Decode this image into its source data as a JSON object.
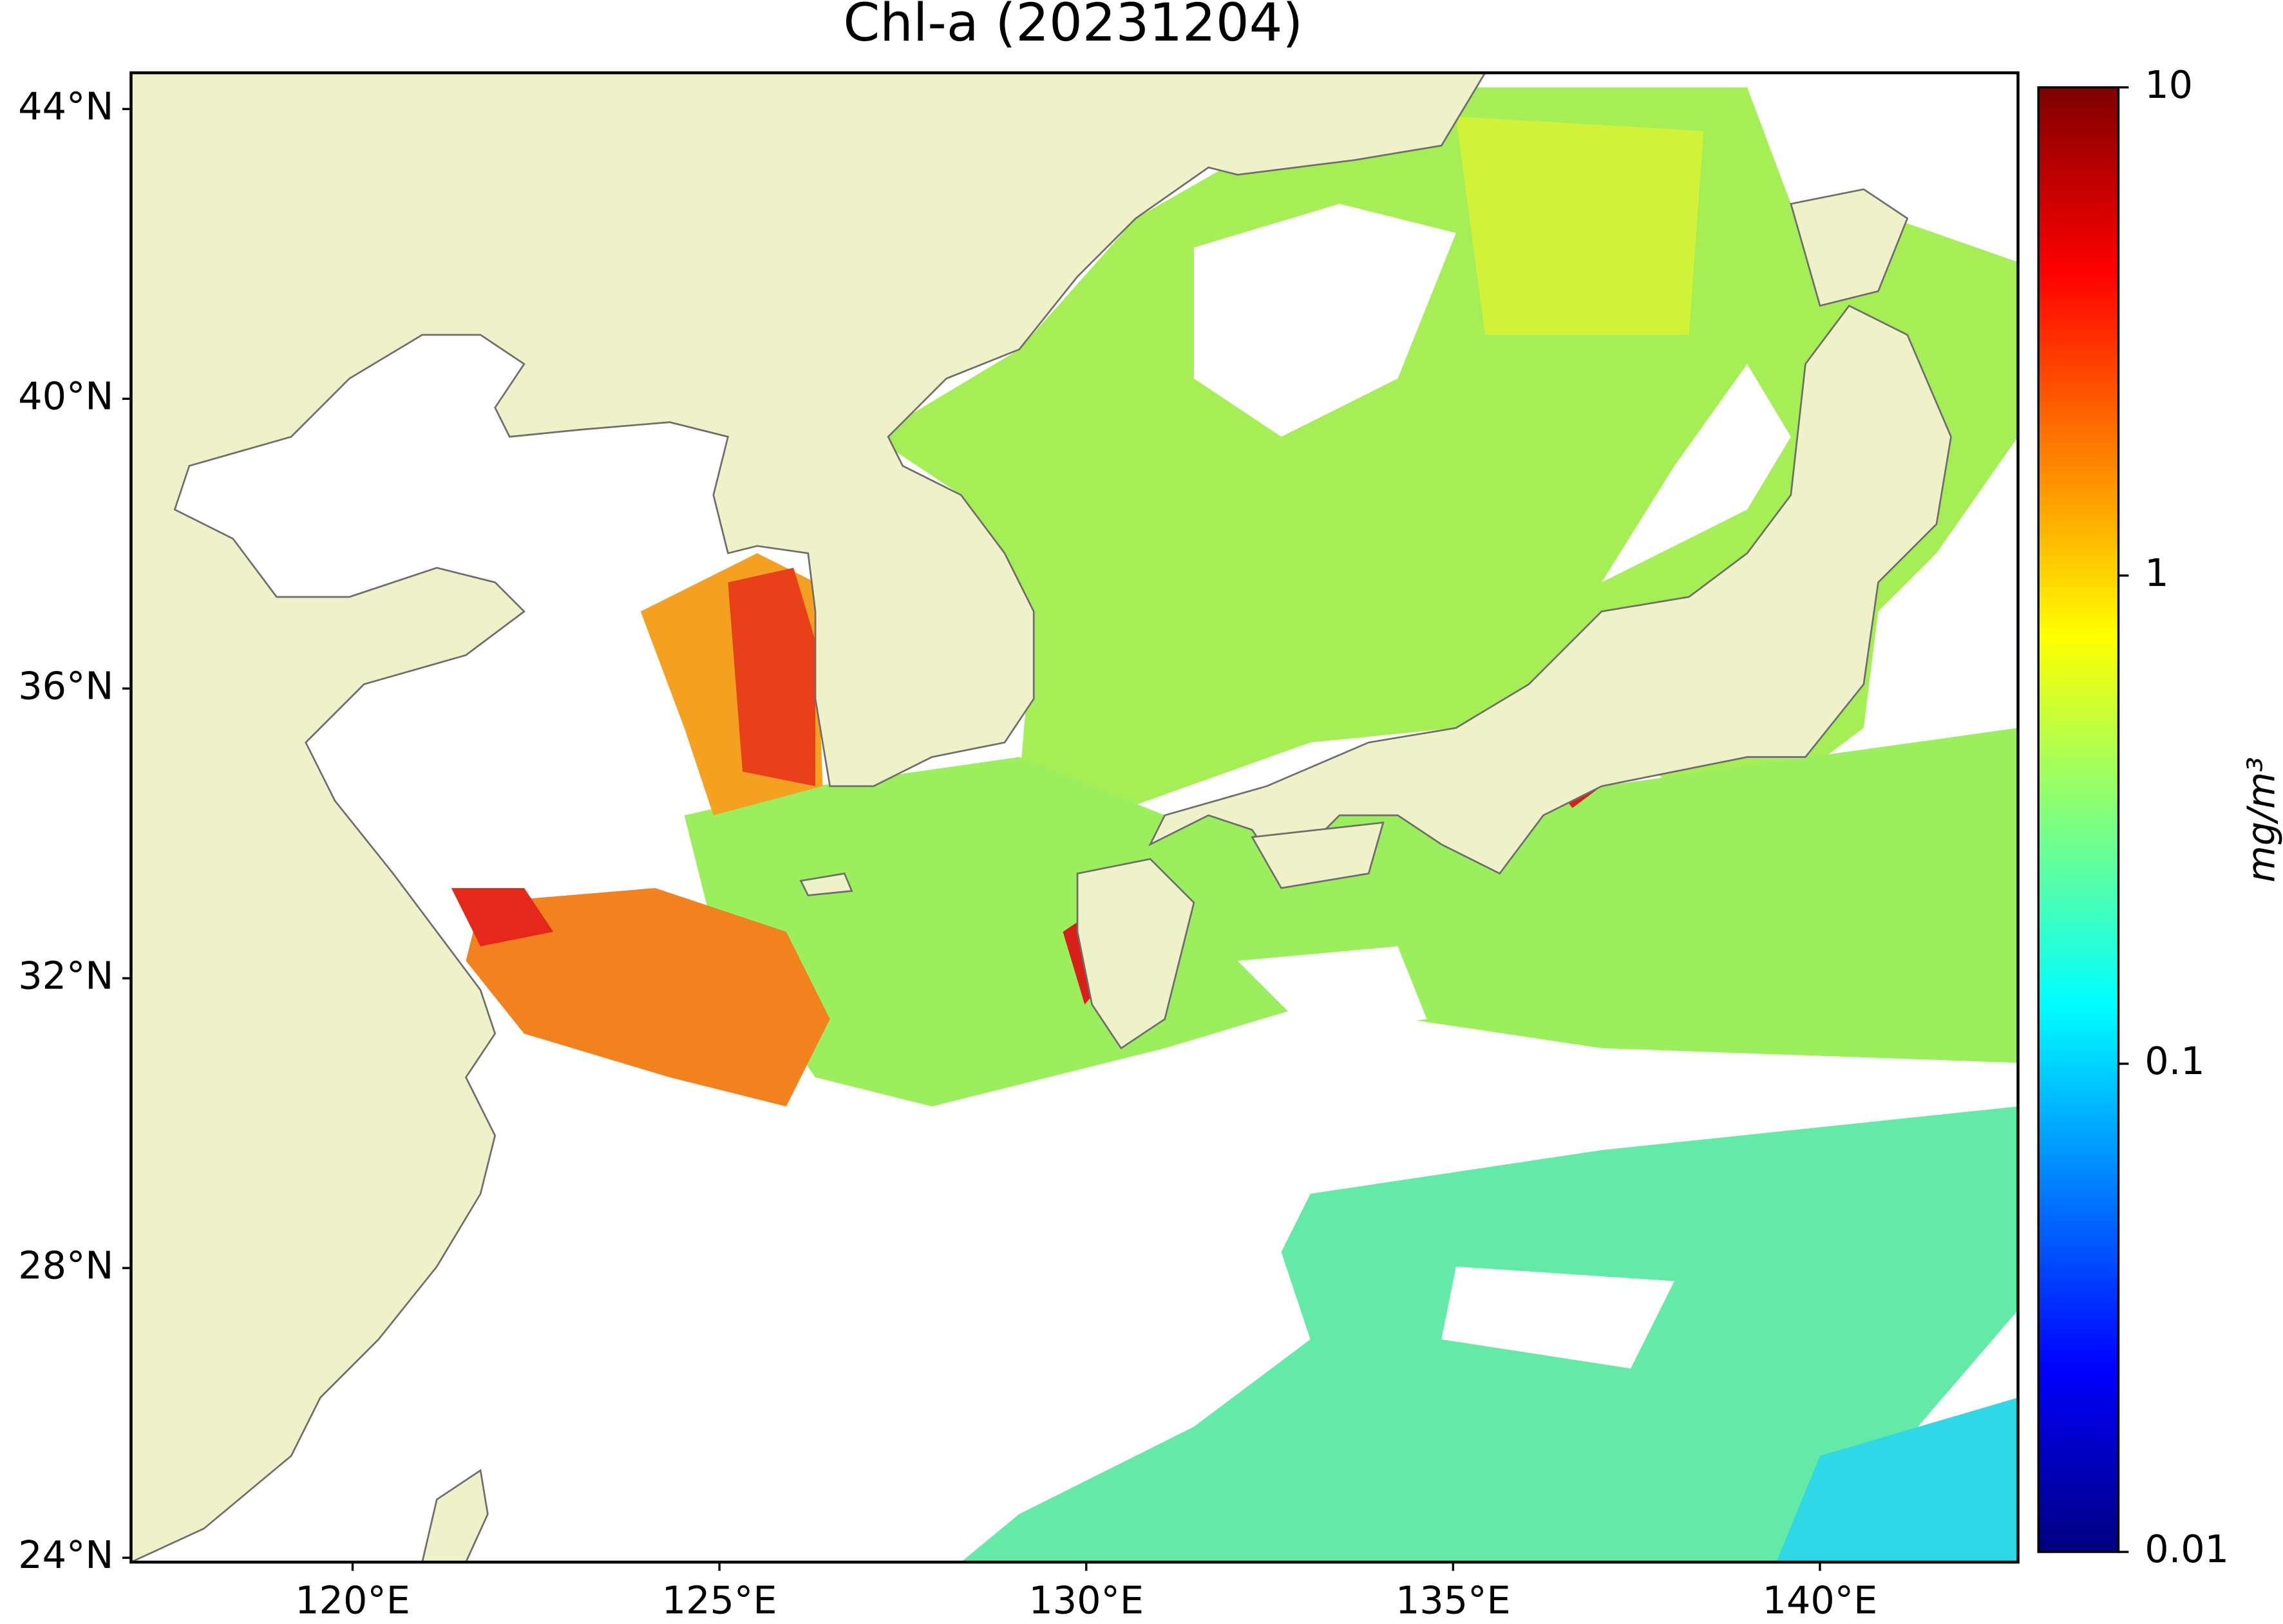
{
  "chart_data": {
    "type": "map",
    "title": "Chl-a (20231204)",
    "xlim": [
      116.98,
      142.7
    ],
    "ylim": [
      23.94,
      44.5
    ],
    "xticks": [
      {
        "value": 120,
        "label": "120°E"
      },
      {
        "value": 125,
        "label": "125°E"
      },
      {
        "value": 130,
        "label": "130°E"
      },
      {
        "value": 135,
        "label": "135°E"
      },
      {
        "value": 140,
        "label": "140°E"
      }
    ],
    "yticks": [
      {
        "value": 24,
        "label": "24°N"
      },
      {
        "value": 28,
        "label": "28°N"
      },
      {
        "value": 32,
        "label": "32°N"
      },
      {
        "value": 36,
        "label": "36°N"
      },
      {
        "value": 40,
        "label": "40°N"
      },
      {
        "value": 44,
        "label": "44°N"
      }
    ],
    "colorbar": {
      "label": "mg/m³",
      "scale": "log",
      "lim": [
        0.01,
        10
      ],
      "ticks": [
        0.01,
        0.1,
        1,
        10
      ],
      "colormap": [
        "#00007f",
        "#0000ff",
        "#007fff",
        "#00ffff",
        "#7fff7f",
        "#ffff00",
        "#ff7f00",
        "#ff0000",
        "#7f0000"
      ]
    }
  }
}
